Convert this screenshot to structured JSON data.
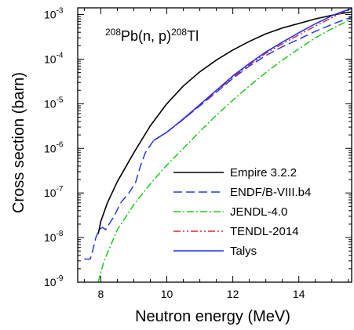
{
  "chart_data": {
    "type": "line",
    "xlabel": "Neutron energy (MeV)",
    "ylabel": "Cross section (barn)",
    "xlim": [
      7.3,
      15.6
    ],
    "ylim_exp": [
      -9,
      -2.85
    ],
    "y_scale": "log",
    "x_ticks": [
      8,
      10,
      12,
      14
    ],
    "x_tick_labels": [
      "8",
      "10",
      "12",
      "14"
    ],
    "y_ticks_exp": [
      -9,
      -8,
      -7,
      -6,
      -5,
      -4,
      -3
    ],
    "y_tick_labels": [
      {
        "base": "10",
        "exp": "-9"
      },
      {
        "base": "10",
        "exp": "-8"
      },
      {
        "base": "10",
        "exp": "-7"
      },
      {
        "base": "10",
        "exp": "-6"
      },
      {
        "base": "10",
        "exp": "-5"
      },
      {
        "base": "10",
        "exp": "-4"
      },
      {
        "base": "10",
        "exp": "-3"
      }
    ],
    "annotation": {
      "pre1": "208",
      "mid1": "Pb(n, p)",
      "pre2": "208",
      "mid2": "Tl"
    },
    "legend_position": "lower-right",
    "series": [
      {
        "name": "Empire 3.2.2",
        "color": "#000000",
        "dash": "solid",
        "points": [
          [
            7.92,
            1.2e-08
          ],
          [
            8.0,
            2.3e-08
          ],
          [
            8.2,
            6e-08
          ],
          [
            8.5,
            1.8e-07
          ],
          [
            9.0,
            8e-07
          ],
          [
            9.5,
            3.2e-06
          ],
          [
            10.0,
            1e-05
          ],
          [
            10.5,
            2.5e-05
          ],
          [
            11.0,
            5.2e-05
          ],
          [
            11.5,
            9.5e-05
          ],
          [
            12.0,
            0.00016
          ],
          [
            12.5,
            0.00025
          ],
          [
            13.0,
            0.00037
          ],
          [
            13.5,
            0.0005
          ],
          [
            14.0,
            0.00063
          ],
          [
            14.5,
            0.0008
          ],
          [
            15.0,
            0.00096
          ],
          [
            15.3,
            0.00106
          ],
          [
            15.6,
            0.00114
          ]
        ]
      },
      {
        "name": "ENDF/B-VIII.b4",
        "color": "#2a3ad8",
        "dash": "dashed",
        "points": [
          [
            7.5,
            3.3e-09
          ],
          [
            7.68,
            3.3e-09
          ],
          [
            7.75,
            5e-09
          ],
          [
            7.85,
            1e-08
          ],
          [
            7.95,
            1.5e-08
          ],
          [
            8.05,
            1.7e-08
          ],
          [
            8.15,
            1.5e-08
          ],
          [
            8.25,
            2e-08
          ],
          [
            8.4,
            3e-08
          ],
          [
            8.6,
            6e-08
          ],
          [
            8.85,
            1e-07
          ],
          [
            9.05,
            1.7e-07
          ],
          [
            9.2,
            4e-07
          ],
          [
            9.35,
            8e-07
          ],
          [
            9.6,
            1.5e-06
          ],
          [
            10.0,
            2.3e-06
          ],
          [
            10.5,
            4.5e-06
          ],
          [
            11.0,
            9e-06
          ],
          [
            11.5,
            1.8e-05
          ],
          [
            12.0,
            3.7e-05
          ],
          [
            12.5,
            7e-05
          ],
          [
            13.0,
            0.00012
          ],
          [
            13.5,
            0.00019
          ],
          [
            14.0,
            0.00028
          ],
          [
            14.5,
            0.00042
          ],
          [
            15.0,
            0.0006
          ],
          [
            15.3,
            0.00073
          ],
          [
            15.6,
            0.00087
          ]
        ]
      },
      {
        "name": "JENDL-4.0",
        "color": "#22c81e",
        "dash": "dashdot",
        "points": [
          [
            7.92,
            1e-09
          ],
          [
            8.1,
            3e-09
          ],
          [
            8.5,
            1.5e-08
          ],
          [
            9.0,
            5.5e-08
          ],
          [
            9.5,
            1.6e-07
          ],
          [
            10.0,
            4.2e-07
          ],
          [
            10.5,
            1e-06
          ],
          [
            11.0,
            2.4e-06
          ],
          [
            11.5,
            5.5e-06
          ],
          [
            12.0,
            1.2e-05
          ],
          [
            12.5,
            2.5e-05
          ],
          [
            13.0,
            5e-05
          ],
          [
            13.5,
            9.5e-05
          ],
          [
            14.0,
            0.00017
          ],
          [
            14.5,
            0.0003
          ],
          [
            15.0,
            0.00048
          ],
          [
            15.6,
            0.0008
          ]
        ]
      },
      {
        "name": "TENDL-2014",
        "color": "#d8282e",
        "dash": "dashdotdot",
        "points": [
          [
            9.6,
            1.5e-06
          ],
          [
            10.0,
            2.3e-06
          ],
          [
            10.5,
            4.5e-06
          ],
          [
            11.0,
            9.3e-06
          ],
          [
            11.5,
            1.9e-05
          ],
          [
            12.0,
            3.9e-05
          ],
          [
            12.5,
            7.5e-05
          ],
          [
            13.0,
            0.000135
          ],
          [
            13.5,
            0.00022
          ],
          [
            14.0,
            0.00035
          ],
          [
            14.5,
            0.00055
          ],
          [
            15.0,
            0.00085
          ],
          [
            15.3,
            0.0011
          ],
          [
            15.6,
            0.00135
          ]
        ]
      },
      {
        "name": "Talys",
        "color": "#1f2fff",
        "dash": "solid",
        "points": [
          [
            9.6,
            1.5e-06
          ],
          [
            10.0,
            2.3e-06
          ],
          [
            10.5,
            4.6e-06
          ],
          [
            11.0,
            9.6e-06
          ],
          [
            11.5,
            2e-05
          ],
          [
            12.0,
            4.2e-05
          ],
          [
            12.5,
            8e-05
          ],
          [
            13.0,
            0.000145
          ],
          [
            13.5,
            0.00024
          ],
          [
            14.0,
            0.00039
          ],
          [
            14.5,
            0.00062
          ],
          [
            15.0,
            0.00094
          ],
          [
            15.3,
            0.00115
          ],
          [
            15.6,
            0.00135
          ]
        ]
      }
    ]
  }
}
